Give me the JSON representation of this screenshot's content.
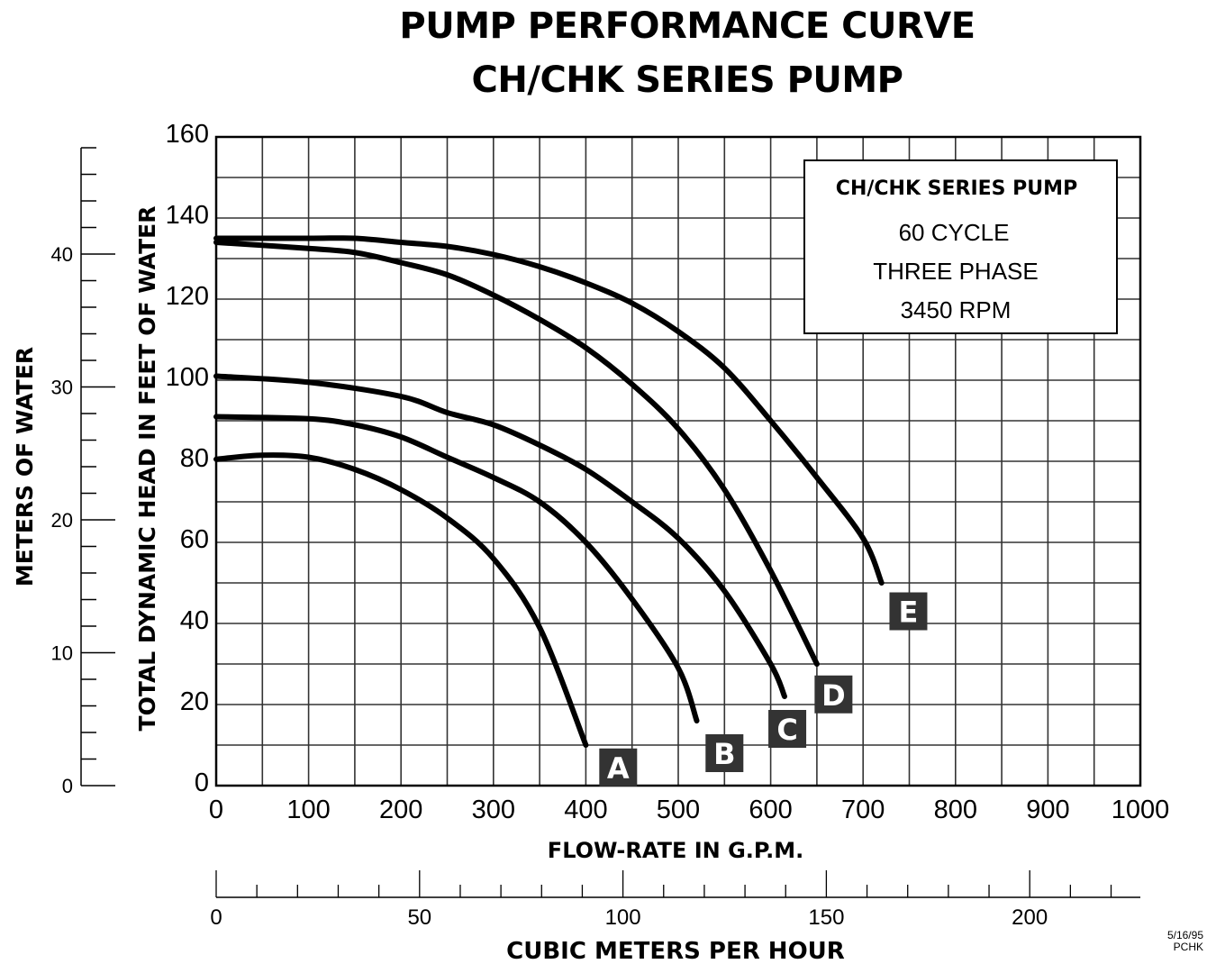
{
  "chart_data": {
    "type": "line",
    "title": "PUMP PERFORMANCE CURVE",
    "subtitle": "CH/CHK SERIES PUMP",
    "xlabel": "FLOW-RATE IN G.P.M.",
    "ylabel": "TOTAL DYNAMIC HEAD IN FEET OF WATER",
    "xlim": [
      0,
      1000
    ],
    "ylim": [
      0,
      160
    ],
    "x_ticks": [
      "0",
      "100",
      "200",
      "300",
      "400",
      "500",
      "600",
      "700",
      "800",
      "900",
      "1000"
    ],
    "y_ticks": [
      "0",
      "20",
      "40",
      "60",
      "80",
      "100",
      "120",
      "140",
      "160"
    ],
    "grid": true,
    "grid_x_step": 50,
    "grid_y_step": 10,
    "secondary_y_axis": {
      "label": "METERS OF WATER",
      "range": [
        0,
        48
      ],
      "ticks": [
        "0",
        "10",
        "20",
        "30",
        "40"
      ],
      "minor_step": 2
    },
    "secondary_x_axis": {
      "label": "CUBIC METERS PER HOUR",
      "range": [
        0,
        225
      ],
      "ticks": [
        "0",
        "50",
        "100",
        "150",
        "200"
      ],
      "minor_step": 10
    },
    "legend": {
      "placement": "top-right",
      "title": "CH/CHK SERIES PUMP",
      "lines": [
        "60 CYCLE",
        "THREE PHASE",
        "3450 RPM"
      ]
    },
    "series": [
      {
        "name": "A",
        "x": [
          0,
          50,
          100,
          150,
          200,
          250,
          300,
          350,
          400
        ],
        "y": [
          80.5,
          81.5,
          81,
          78,
          73,
          66,
          56,
          39,
          10
        ]
      },
      {
        "name": "B",
        "x": [
          0,
          100,
          150,
          200,
          250,
          300,
          350,
          400,
          450,
          500,
          520
        ],
        "y": [
          91,
          90.5,
          89,
          86,
          81,
          76,
          70,
          60,
          46,
          29,
          16
        ]
      },
      {
        "name": "C",
        "x": [
          0,
          100,
          200,
          250,
          300,
          350,
          400,
          450,
          500,
          550,
          600,
          615
        ],
        "y": [
          101,
          99.5,
          96,
          92,
          89,
          84,
          78,
          70,
          61,
          48,
          30,
          22
        ]
      },
      {
        "name": "D",
        "x": [
          0,
          100,
          150,
          200,
          250,
          300,
          350,
          400,
          450,
          500,
          550,
          600,
          650
        ],
        "y": [
          134,
          132.5,
          131.5,
          129,
          126,
          121,
          115,
          108,
          99,
          88,
          73,
          53,
          30
        ]
      },
      {
        "name": "E",
        "x": [
          0,
          100,
          150,
          200,
          250,
          300,
          350,
          400,
          450,
          500,
          550,
          600,
          650,
          700,
          720
        ],
        "y": [
          135,
          135,
          135,
          134,
          133,
          131,
          128,
          124,
          119,
          112,
          103,
          90,
          76,
          61,
          50
        ]
      }
    ],
    "series_labels": [
      {
        "name": "A",
        "x": 435,
        "y": 4.5
      },
      {
        "name": "B",
        "x": 550,
        "y": 8
      },
      {
        "name": "C",
        "x": 618,
        "y": 14
      },
      {
        "name": "D",
        "x": 668,
        "y": 22.5
      },
      {
        "name": "E",
        "x": 749,
        "y": 43
      }
    ],
    "colors": {
      "line": "#000000",
      "grid": "#333333",
      "label_box": "#333333",
      "label_text": "#ffffff"
    }
  },
  "footer": {
    "date": "5/16/95",
    "code": "PCHK"
  }
}
